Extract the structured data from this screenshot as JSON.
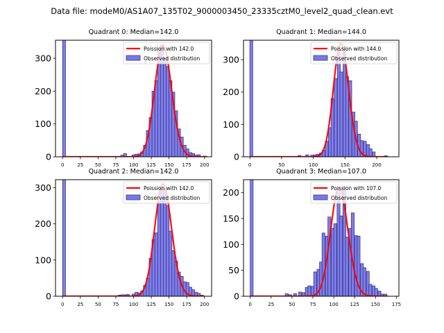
{
  "suptitle": "Data file: modeM0/AS1A07_135T02_9000003450_23335cztM0_level2_quad_clean.evt",
  "colors": {
    "bar_fill": "#7777ee",
    "bar_edge": "#3a3a7a",
    "poisson_line": "#ff0000"
  },
  "chart_data": [
    {
      "type": "bar",
      "title": "Quadrant 0: Median=142.0",
      "xlim": [
        -10,
        210
      ],
      "ylim": [
        0,
        355
      ],
      "xticks": [
        0,
        25,
        50,
        75,
        100,
        125,
        150,
        175,
        200
      ],
      "yticks": [
        0,
        100,
        200,
        300
      ],
      "bin_width": 4.1,
      "legend": {
        "placement": "top-right",
        "entries": [
          "Poission with 142.0",
          "Observed distribution"
        ]
      },
      "poisson_mean": 142.0,
      "poisson_peak": 340,
      "hist": {
        "x": [
          0,
          82,
          86,
          98,
          102,
          106,
          110,
          114,
          118,
          122,
          126,
          130,
          134,
          138,
          142,
          146,
          150,
          154,
          158,
          162,
          166,
          170,
          174,
          178,
          182,
          186,
          190,
          198
        ],
        "values": [
          355,
          5,
          10,
          6,
          8,
          9,
          15,
          35,
          80,
          120,
          200,
          232,
          330,
          340,
          300,
          275,
          232,
          197,
          140,
          85,
          60,
          35,
          24,
          13,
          10,
          5,
          6,
          2
        ]
      }
    },
    {
      "type": "bar",
      "title": "Quadrant 1: Median=144.0",
      "xlim": [
        -10,
        235
      ],
      "ylim": [
        0,
        360
      ],
      "xticks": [
        0,
        50,
        100,
        150,
        200
      ],
      "yticks": [
        0,
        100,
        200,
        300
      ],
      "bin_width": 4.6,
      "legend": {
        "placement": "top-right",
        "entries": [
          "Poission with 144.0",
          "Observed distribution"
        ]
      },
      "poisson_mean": 144.0,
      "poisson_peak": 350,
      "hist": {
        "x": [
          0,
          76,
          88,
          96,
          100,
          105,
          110,
          114,
          119,
          124,
          128,
          133,
          138,
          142,
          147,
          151,
          156,
          161,
          165,
          170,
          174,
          179,
          184,
          188,
          193,
          212
        ],
        "values": [
          360,
          4,
          6,
          5,
          6,
          8,
          12,
          20,
          48,
          90,
          180,
          242,
          330,
          262,
          340,
          248,
          235,
          138,
          110,
          70,
          50,
          48,
          38,
          25,
          15,
          3
        ]
      }
    },
    {
      "type": "bar",
      "title": "Quadrant 2: Median=142.0",
      "xlim": [
        -10,
        210
      ],
      "ylim": [
        0,
        322
      ],
      "xticks": [
        0,
        25,
        50,
        75,
        100,
        125,
        150,
        175,
        200
      ],
      "yticks": [
        0,
        100,
        200,
        300
      ],
      "bin_width": 4.1,
      "legend": {
        "placement": "top-right",
        "entries": [
          "Poission with 142.0",
          "Observed distribution"
        ]
      },
      "poisson_mean": 142.0,
      "poisson_peak": 310,
      "hist": {
        "x": [
          0,
          78,
          82,
          86,
          90,
          98,
          102,
          106,
          110,
          114,
          118,
          122,
          126,
          130,
          134,
          138,
          142,
          146,
          150,
          154,
          158,
          162,
          166,
          170,
          174,
          178,
          182,
          186,
          190,
          194
        ],
        "values": [
          322,
          3,
          4,
          4,
          5,
          6,
          11,
          9,
          15,
          30,
          50,
          105,
          157,
          175,
          262,
          300,
          298,
          250,
          180,
          126,
          97,
          67,
          55,
          40,
          38,
          25,
          18,
          11,
          8,
          3
        ]
      }
    },
    {
      "type": "bar",
      "title": "Quadrant 3: Median=107.0",
      "xlim": [
        -8,
        178
      ],
      "ylim": [
        0,
        225
      ],
      "xticks": [
        0,
        25,
        50,
        75,
        100,
        125,
        150,
        175
      ],
      "yticks": [
        0,
        50,
        100,
        150,
        200
      ],
      "bin_width": 3.5,
      "legend": {
        "placement": "top-right",
        "entries": [
          "Poission with 107.0",
          "Observed distribution"
        ]
      },
      "poisson_mean": 107.0,
      "poisson_peak": 210,
      "hist": {
        "x": [
          0,
          42,
          46,
          52,
          58,
          62,
          66,
          69,
          73,
          76,
          80,
          83,
          86,
          90,
          93,
          97,
          100,
          104,
          107,
          111,
          114,
          118,
          121,
          125,
          128,
          132,
          135,
          139,
          142,
          146,
          149,
          153,
          156,
          160
        ],
        "values": [
          225,
          5,
          3,
          5,
          8,
          7,
          17,
          20,
          19,
          47,
          52,
          66,
          122,
          116,
          153,
          131,
          140,
          205,
          155,
          212,
          114,
          131,
          161,
          117,
          116,
          63,
          55,
          48,
          23,
          20,
          15,
          10,
          4,
          4
        ]
      }
    }
  ]
}
